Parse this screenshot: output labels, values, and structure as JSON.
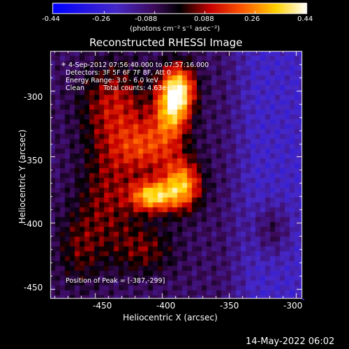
{
  "colorbar": {
    "ticks": [
      "-0.44",
      "-0.26",
      "-0.088",
      "0.088",
      "0.26",
      "0.44"
    ],
    "units": "(photons cm⁻² s⁻¹ asec⁻²)",
    "range": [
      -0.44,
      0.44
    ]
  },
  "title": "Reconstructed RHESSI Image",
  "annotations": {
    "time": "4-Sep-2012 07:56:40.000 to 07:57:16.000",
    "detectors": "Detectors: 3F 5F 6F 7F 8F, Att 0",
    "energy": "Energy Range: 3.0 - 6.0 keV",
    "clean_label": "Clean",
    "total_counts": "Total counts: 4.63e+03",
    "peak": "Position of Peak = [-387,-299]"
  },
  "timestamp": "14-May-2022 06:02",
  "chart_data": {
    "type": "heatmap",
    "title": "Reconstructed RHESSI Image",
    "xlabel": "Heliocentric X (arcsec)",
    "ylabel": "Heliocentric Y (arcsec)",
    "xlim": [
      -483,
      -296
    ],
    "ylim": [
      -457,
      -270
    ],
    "xticks": [
      "-450",
      "-400",
      "-350",
      "-300"
    ],
    "yticks": [
      "-300",
      "-350",
      "-400",
      "-450"
    ],
    "xtick_values": [
      -450,
      -400,
      -350,
      -300
    ],
    "ytick_values": [
      -300,
      -350,
      -400,
      -450
    ],
    "value_range": [
      -0.44,
      0.44
    ],
    "peak": [
      -387,
      -299
    ],
    "sources": [
      {
        "x": -388,
        "y": -299,
        "sx": 9,
        "sy": 13,
        "amp": 0.46
      },
      {
        "x": -393,
        "y": -318,
        "sx": 9,
        "sy": 14,
        "amp": 0.3
      },
      {
        "x": -407,
        "y": -380,
        "sx": 11,
        "sy": 8,
        "amp": 0.42
      },
      {
        "x": -385,
        "y": -372,
        "sx": 10,
        "sy": 13,
        "amp": 0.4
      },
      {
        "x": -410,
        "y": -343,
        "sx": 18,
        "sy": 15,
        "amp": 0.24
      },
      {
        "x": -435,
        "y": -310,
        "sx": 18,
        "sy": 22,
        "amp": 0.2
      },
      {
        "x": -440,
        "y": -380,
        "sx": 16,
        "sy": 30,
        "amp": 0.16
      },
      {
        "x": -412,
        "y": -420,
        "sx": 16,
        "sy": 14,
        "amp": 0.14
      },
      {
        "x": -462,
        "y": -420,
        "sx": 12,
        "sy": 20,
        "amp": 0.12
      },
      {
        "x": -318,
        "y": -405,
        "sx": 10,
        "sy": 14,
        "amp": 0.14
      }
    ],
    "background": -0.1
  }
}
